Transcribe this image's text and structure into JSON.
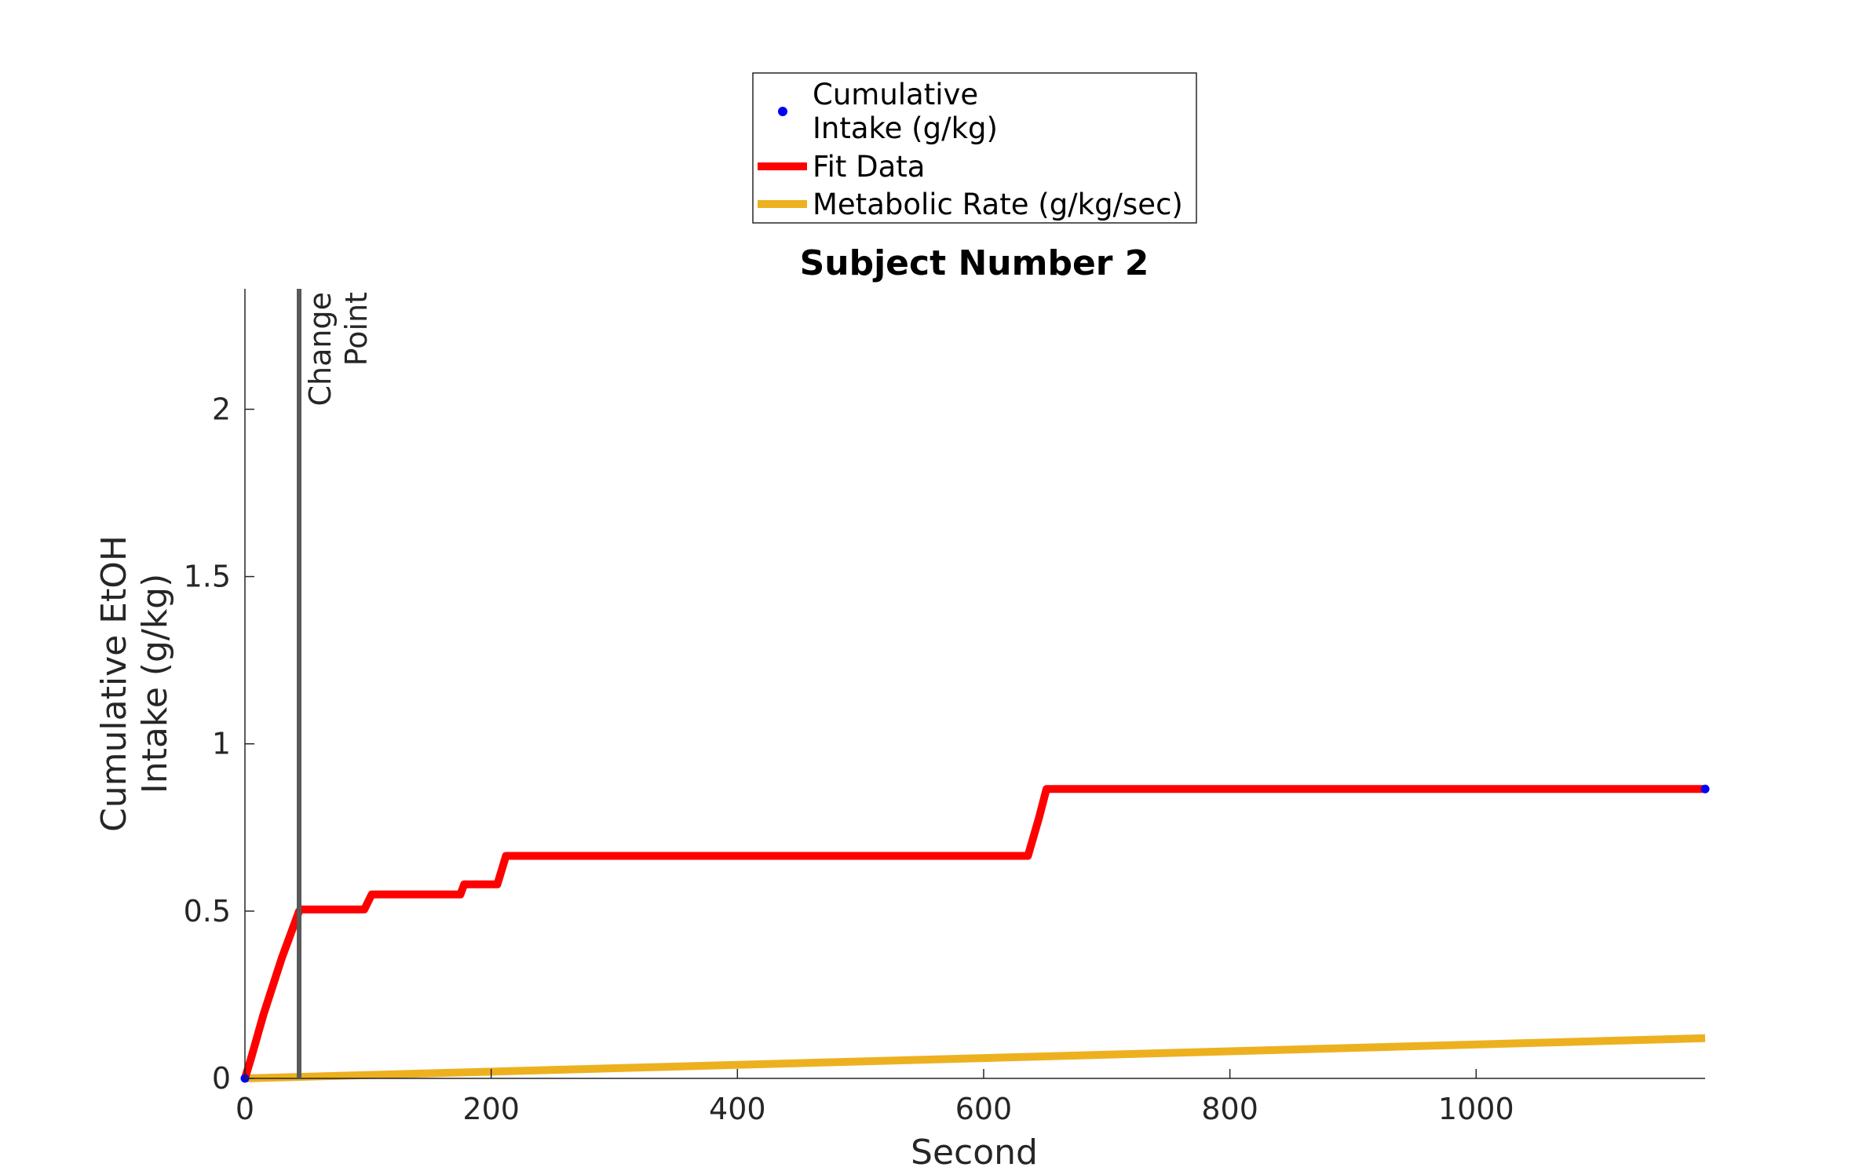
{
  "chart_data": {
    "type": "line",
    "title": "Subject Number 2",
    "xlabel": "Second",
    "ylabel_lines": [
      "Cumulative EtOH",
      "Intake (g/kg)"
    ],
    "xlim": [
      0,
      1186
    ],
    "ylim": [
      0,
      2.36
    ],
    "xticks": [
      0,
      200,
      400,
      600,
      800,
      1000
    ],
    "yticks": [
      0,
      0.5,
      1,
      1.5,
      2
    ],
    "xtick_labels": [
      "0",
      "200",
      "400",
      "600",
      "800",
      "1000"
    ],
    "ytick_labels": [
      "0",
      "0.5",
      "1",
      "1.5",
      "2"
    ],
    "legend": {
      "placement": "top-center, outside axes",
      "entries": [
        {
          "label_lines": [
            "Cumulative",
            "Intake (g/kg)"
          ],
          "marker": "dot",
          "color": "#0000FF"
        },
        {
          "label_lines": [
            "Fit Data"
          ],
          "marker": "line",
          "color": "#FF0000"
        },
        {
          "label_lines": [
            "Metabolic Rate (g/kg/sec)"
          ],
          "marker": "line",
          "color": "#EDB120"
        }
      ]
    },
    "series": [
      {
        "name": "Cumulative Intake (g/kg)",
        "style": "dots",
        "color": "#0000FF",
        "points": [
          [
            0,
            0
          ],
          [
            1186,
            0.865
          ]
        ]
      },
      {
        "name": "Fit Data",
        "style": "line",
        "color": "#FF0000",
        "points": [
          [
            0,
            0
          ],
          [
            5,
            0.06
          ],
          [
            15,
            0.19
          ],
          [
            30,
            0.36
          ],
          [
            44,
            0.5
          ],
          [
            46,
            0.505
          ],
          [
            97,
            0.505
          ],
          [
            103,
            0.55
          ],
          [
            175,
            0.55
          ],
          [
            178,
            0.58
          ],
          [
            205,
            0.58
          ],
          [
            212,
            0.665
          ],
          [
            636,
            0.665
          ],
          [
            645,
            0.78
          ],
          [
            651,
            0.865
          ],
          [
            1186,
            0.865
          ]
        ]
      },
      {
        "name": "Metabolic Rate (g/kg/sec)",
        "style": "line",
        "color": "#EDB120",
        "points": [
          [
            0,
            0
          ],
          [
            1186,
            0.12
          ]
        ]
      }
    ],
    "annotations": [
      {
        "type": "vline",
        "x": 44,
        "color": "#595959",
        "label_lines": [
          "Change",
          "Point"
        ]
      }
    ]
  }
}
